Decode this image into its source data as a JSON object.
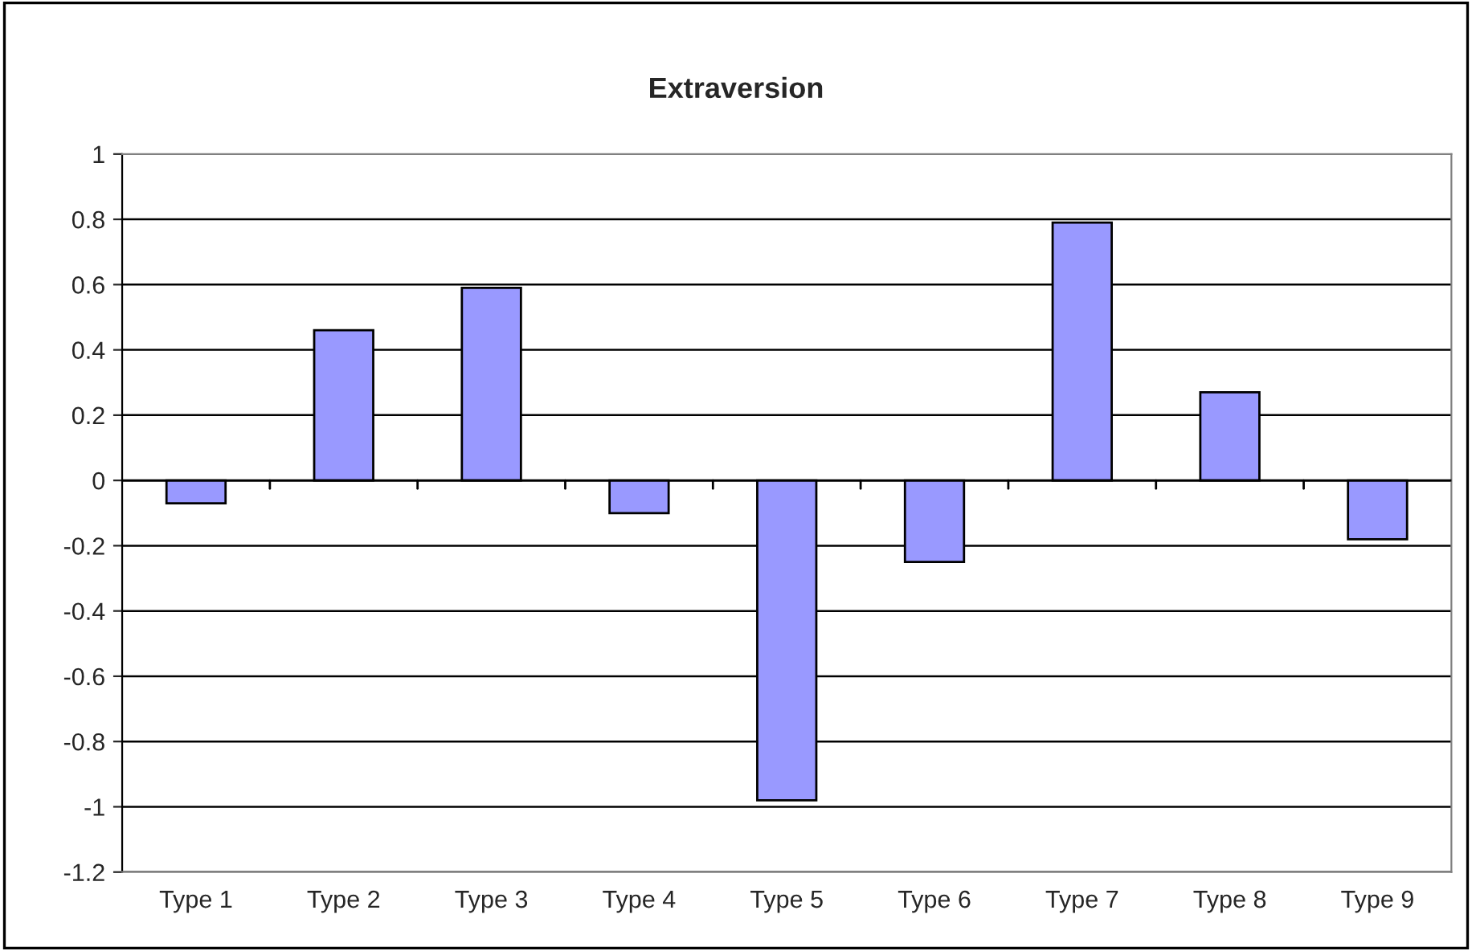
{
  "chart_data": {
    "type": "bar",
    "title": "Extraversion",
    "categories": [
      "Type 1",
      "Type 2",
      "Type 3",
      "Type 4",
      "Type 5",
      "Type 6",
      "Type 7",
      "Type 8",
      "Type 9"
    ],
    "values": [
      -0.07,
      0.46,
      0.59,
      -0.1,
      -0.98,
      -0.25,
      0.79,
      0.27,
      -0.18
    ],
    "color": "#9999ff",
    "ylim": [
      -1.2,
      1
    ],
    "yticks": [
      -1.2,
      -1,
      -0.8,
      -0.6,
      -0.4,
      -0.2,
      0,
      0.2,
      0.4,
      0.6,
      0.8,
      1
    ],
    "grid": "y"
  }
}
